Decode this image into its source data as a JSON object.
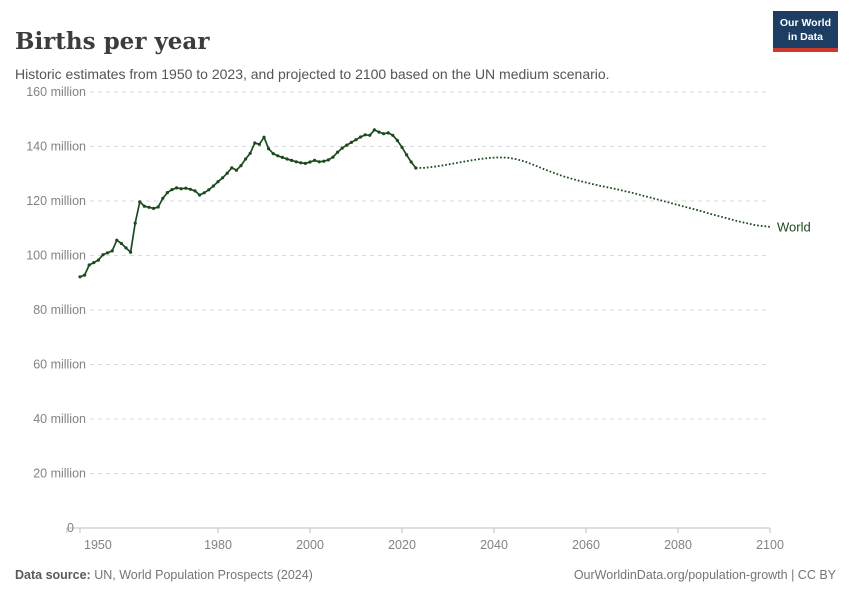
{
  "header": {
    "title": "Births per year",
    "subtitle": "Historic estimates from 1950 to 2023, and projected to 2100 based on the UN medium scenario.",
    "logo": {
      "line1": "Our World",
      "line2": "in Data"
    }
  },
  "footer": {
    "datasource_label": "Data source:",
    "datasource_value": "UN, World Population Prospects (2024)",
    "link_text": "OurWorldinData.org/population-growth | CC BY"
  },
  "colors": {
    "series_green": "#1c4a1f",
    "logo_bg": "#1d3d63",
    "logo_red": "#cc3a2e",
    "gridline": "#dadada",
    "axis_line": "#c2c2c2",
    "tick_text": "#838383"
  },
  "chart_data": {
    "type": "line",
    "title": "Births per year",
    "unit": "million",
    "series_label": "World",
    "legend_position": "end-of-line",
    "grid": "dashed-horizontal",
    "x_axis": {
      "range": [
        1950,
        2100
      ],
      "ticks": [
        1950,
        1980,
        2000,
        2020,
        2040,
        2060,
        2080,
        2100
      ]
    },
    "y_axis": {
      "range": [
        0,
        160
      ],
      "ticks": [
        {
          "value": 0,
          "label": "0"
        },
        {
          "value": 20,
          "label": "20 million"
        },
        {
          "value": 40,
          "label": "40 million"
        },
        {
          "value": 60,
          "label": "60 million"
        },
        {
          "value": 80,
          "label": "80 million"
        },
        {
          "value": 100,
          "label": "100 million"
        },
        {
          "value": 120,
          "label": "120 million"
        },
        {
          "value": 140,
          "label": "140 million"
        },
        {
          "value": 160,
          "label": "160 million"
        }
      ]
    },
    "historic": {
      "style": "solid-with-markers",
      "years": [
        1950,
        1951,
        1952,
        1953,
        1954,
        1955,
        1956,
        1957,
        1958,
        1959,
        1960,
        1961,
        1962,
        1963,
        1964,
        1965,
        1966,
        1967,
        1968,
        1969,
        1970,
        1971,
        1972,
        1973,
        1974,
        1975,
        1976,
        1977,
        1978,
        1979,
        1980,
        1981,
        1982,
        1983,
        1984,
        1985,
        1986,
        1987,
        1988,
        1989,
        1990,
        1991,
        1992,
        1993,
        1994,
        1995,
        1996,
        1997,
        1998,
        1999,
        2000,
        2001,
        2002,
        2003,
        2004,
        2005,
        2006,
        2007,
        2008,
        2009,
        2010,
        2011,
        2012,
        2013,
        2014,
        2015,
        2016,
        2017,
        2018,
        2019,
        2020,
        2021,
        2022,
        2023
      ],
      "values": [
        92.2,
        92.8,
        96.5,
        97.4,
        98.3,
        100.3,
        101.0,
        101.7,
        105.6,
        104.4,
        102.8,
        101.2,
        111.9,
        119.7,
        118.1,
        117.7,
        117.3,
        117.8,
        121.0,
        123.1,
        124.2,
        124.8,
        124.5,
        124.7,
        124.3,
        123.7,
        122.2,
        123.0,
        124.1,
        125.5,
        127.1,
        128.5,
        130.2,
        132.2,
        131.3,
        133.0,
        135.4,
        137.5,
        141.3,
        140.8,
        143.4,
        139.2,
        137.4,
        136.6,
        136.0,
        135.4,
        134.9,
        134.4,
        134.0,
        133.8,
        134.3,
        134.9,
        134.4,
        134.6,
        135.1,
        136.1,
        137.9,
        139.4,
        140.5,
        141.5,
        142.5,
        143.5,
        144.3,
        144.1,
        146.1,
        145.3,
        144.7,
        145.0,
        144.1,
        142.2,
        139.7,
        136.9,
        134.3,
        132.1
      ]
    },
    "projection": {
      "style": "dotted",
      "years": [
        2023,
        2025,
        2027,
        2029,
        2031,
        2033,
        2035,
        2037,
        2039,
        2041,
        2043,
        2045,
        2047,
        2049,
        2051,
        2053,
        2055,
        2057,
        2059,
        2061,
        2063,
        2065,
        2067,
        2069,
        2071,
        2073,
        2075,
        2077,
        2079,
        2081,
        2083,
        2085,
        2087,
        2089,
        2091,
        2093,
        2095,
        2097,
        2099,
        2100
      ],
      "values": [
        132.1,
        132.2,
        132.6,
        133.1,
        133.7,
        134.3,
        134.9,
        135.4,
        135.8,
        136.0,
        135.9,
        135.3,
        134.3,
        133.0,
        131.6,
        130.3,
        129.1,
        128.1,
        127.2,
        126.4,
        125.6,
        124.9,
        124.2,
        123.4,
        122.6,
        121.7,
        120.8,
        119.9,
        119.0,
        118.1,
        117.2,
        116.3,
        115.3,
        114.4,
        113.5,
        112.6,
        111.8,
        111.1,
        110.7,
        110.5
      ]
    }
  }
}
